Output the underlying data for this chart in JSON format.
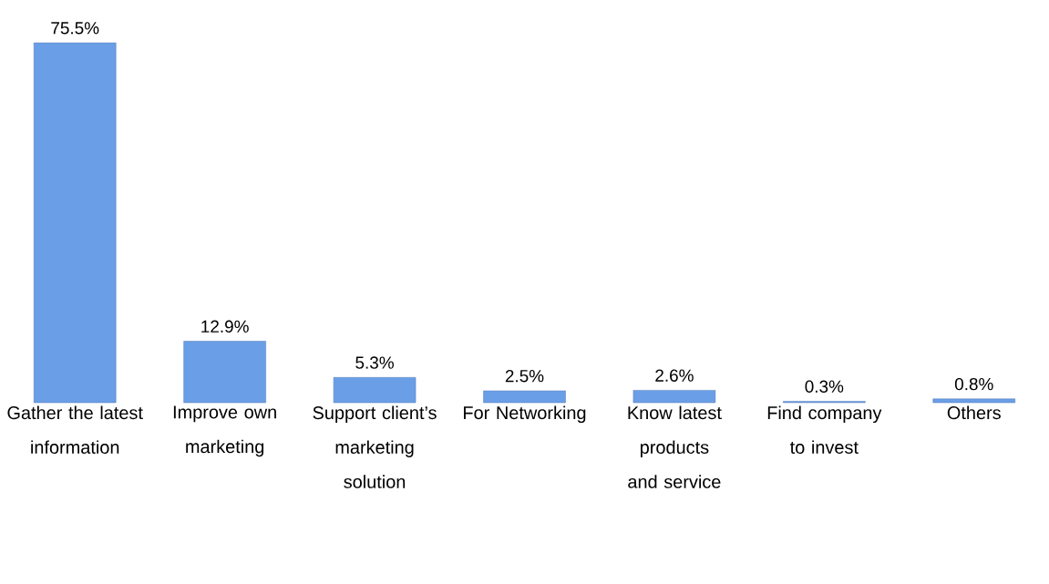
{
  "chart_data": {
    "type": "bar",
    "categories": [
      "Gather the latest information",
      "Improve own marketing",
      "Support client’s marketing solution",
      "For Networking",
      "Know latest products and service",
      "Find company to invest",
      "Others"
    ],
    "values": [
      75.5,
      12.9,
      5.3,
      2.5,
      2.6,
      0.3,
      0.8
    ],
    "value_labels": [
      "75.5%",
      "12.9%",
      "5.3%",
      "2.5%",
      "2.6%",
      "0.3%",
      "0.8%"
    ],
    "color": "#6a9ee6"
  }
}
